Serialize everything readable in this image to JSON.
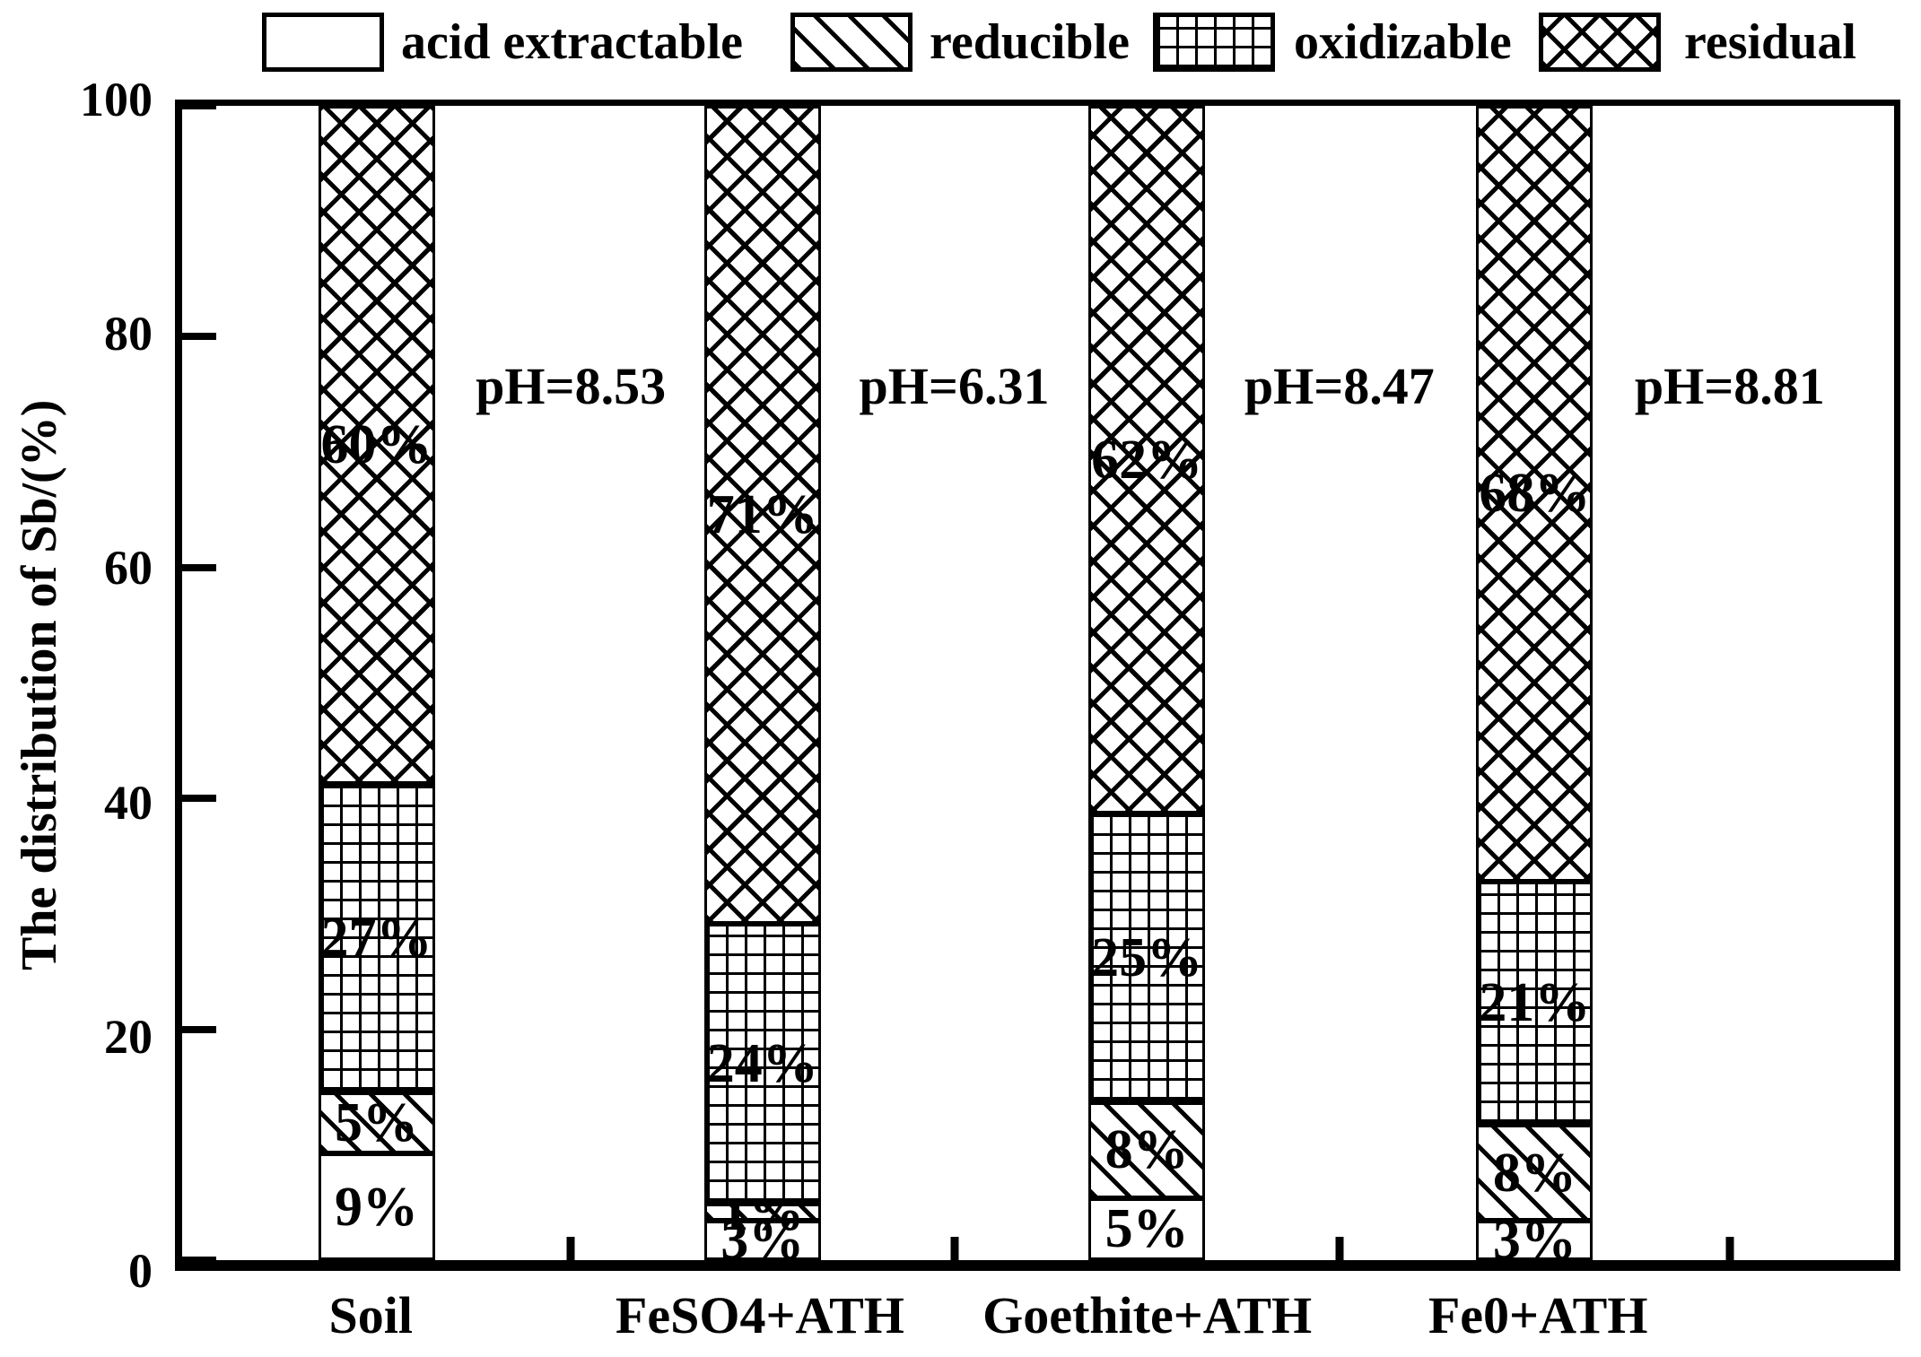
{
  "colors": {
    "ink": "#000000",
    "background": "#ffffff"
  },
  "legend": {
    "items": [
      {
        "label": "acid extractable",
        "pattern": "plain"
      },
      {
        "label": "reducible",
        "pattern": "diagonal"
      },
      {
        "label": "oxidizable",
        "pattern": "grid"
      },
      {
        "label": "residual",
        "pattern": "crosshatch"
      }
    ]
  },
  "chart_data": {
    "type": "bar",
    "stacked": true,
    "title": "",
    "categories": [
      "Soil",
      "FeSO4+ATH",
      "Goethite+ATH",
      "Fe0+ATH"
    ],
    "series": [
      {
        "name": "acid extractable",
        "pattern": "plain",
        "values": [
          9,
          3,
          5,
          3
        ]
      },
      {
        "name": "reducible",
        "pattern": "diagonal",
        "values": [
          5,
          1,
          8,
          8
        ]
      },
      {
        "name": "oxidizable",
        "pattern": "grid",
        "values": [
          27,
          24,
          25,
          21
        ]
      },
      {
        "name": "residual",
        "pattern": "crosshatch",
        "values": [
          60,
          71,
          62,
          68
        ]
      }
    ],
    "value_suffix": "%",
    "segment_labels": [
      [
        "9%",
        "3%",
        "5%",
        "3%"
      ],
      [
        "5%",
        "1%",
        "8%",
        "8%"
      ],
      [
        "27%",
        "24%",
        "25%",
        "21%"
      ],
      [
        "60%",
        "71%",
        "62%",
        "68%"
      ]
    ],
    "annotations": [
      {
        "text": "pH=8.53"
      },
      {
        "text": "pH=6.31"
      },
      {
        "text": "pH=8.47"
      },
      {
        "text": "pH=8.81"
      }
    ],
    "xlabel": "",
    "ylabel": "The distribution of Sb/(%)",
    "ylim": [
      0,
      100
    ],
    "yticks": [
      "0",
      "20",
      "40",
      "60",
      "80",
      "100"
    ],
    "grid": false,
    "legend_position": "top"
  }
}
